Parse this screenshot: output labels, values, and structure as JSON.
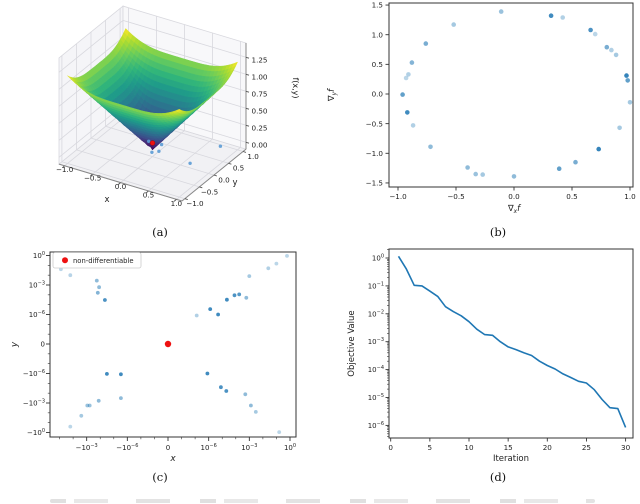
{
  "figure": {
    "captions": {
      "a": "(a)",
      "b": "(b)",
      "c": "(c)",
      "d": "(d)"
    }
  },
  "colors": {
    "blue": "#1f77b4",
    "light_blue": "#5b9bd5",
    "red": "#ee1111",
    "spine": "#333333",
    "text": "#222222",
    "pane": "#f1f1f4",
    "grid3d": "#d8d8de",
    "legend_border": "#cccccc"
  },
  "chart_data": [
    {
      "id": "a",
      "type": "surface3d",
      "xlabel": "x",
      "ylabel": "y",
      "zlabel": "f(x,y)",
      "surface_fn": "f(x,y)=(x^4+y^4)^(1/4)",
      "colormap": "viridis",
      "x_range": [
        -1,
        1
      ],
      "y_range": [
        -1,
        1
      ],
      "z_range": [
        0,
        1.19
      ],
      "xticks": [
        "−1.0",
        "−0.5",
        "0.0",
        "0.5",
        "1.0"
      ],
      "xtick_vals": [
        -1,
        -0.5,
        0,
        0.5,
        1
      ],
      "yticks": [
        "−1.0",
        "−0.5",
        "0.0",
        "0.5",
        "1.0"
      ],
      "ytick_vals": [
        -1,
        -0.5,
        0,
        0.5,
        1
      ],
      "zticks": [
        "0.00",
        "0.25",
        "0.50",
        "0.75",
        "1.00",
        "1.25"
      ],
      "ztick_vals": [
        0,
        0.25,
        0.5,
        0.75,
        1,
        1.25
      ],
      "scatter_blue": [
        [
          -0.12,
          0.1,
          0.06
        ],
        [
          0.1,
          0.12,
          0.06
        ],
        [
          0.14,
          -0.05,
          0.03
        ],
        [
          0.0,
          -0.02,
          -0.03
        ],
        [
          0.85,
          0.7,
          0.02
        ],
        [
          0.62,
          0.1,
          -0.08
        ]
      ],
      "scatter_red": [
        [
          0,
          0,
          0.1
        ]
      ]
    },
    {
      "id": "b",
      "type": "scatter",
      "xlabel": {
        "pre": "∇",
        "sub": "x",
        "post": "f"
      },
      "ylabel": {
        "pre": "∇",
        "sub": "y",
        "post": "f"
      },
      "xtick_vals": [
        -1,
        -0.5,
        0,
        0.5,
        1
      ],
      "xtick_labels": [
        "−1.0",
        "−0.5",
        "0.0",
        "0.5",
        "1.0"
      ],
      "ytick_vals": [
        1.5,
        1,
        0.5,
        0,
        -0.5,
        -1,
        -1.5
      ],
      "ytick_labels": [
        "1.5",
        "1.0",
        "0.5",
        "0.0",
        "−0.5",
        "−1.0",
        "−1.5"
      ],
      "points": [
        [
          -0.11,
          1.39,
          0.45
        ],
        [
          0.32,
          1.32,
          0.85
        ],
        [
          0.42,
          1.29,
          0.35
        ],
        [
          0.66,
          1.08,
          0.8
        ],
        [
          0.7,
          1.01,
          0.3
        ],
        [
          0.8,
          0.79,
          0.6
        ],
        [
          0.84,
          0.74,
          0.35
        ],
        [
          0.88,
          0.66,
          0.4
        ],
        [
          0.97,
          0.31,
          0.9
        ],
        [
          0.98,
          0.23,
          0.7
        ],
        [
          1.0,
          -0.14,
          0.4
        ],
        [
          0.91,
          -0.57,
          0.4
        ],
        [
          0.73,
          -0.93,
          0.9
        ],
        [
          0.53,
          -1.15,
          0.6
        ],
        [
          0.39,
          -1.26,
          0.7
        ],
        [
          0.0,
          -1.39,
          0.5
        ],
        [
          -0.27,
          -1.36,
          0.4
        ],
        [
          -0.33,
          -1.35,
          0.45
        ],
        [
          -0.4,
          -1.24,
          0.5
        ],
        [
          -0.72,
          -0.89,
          0.5
        ],
        [
          -0.87,
          -0.53,
          0.35
        ],
        [
          -0.92,
          -0.31,
          0.85
        ],
        [
          -0.96,
          -0.01,
          0.7
        ],
        [
          -0.93,
          0.27,
          0.3
        ],
        [
          -0.91,
          0.33,
          0.35
        ],
        [
          -0.88,
          0.53,
          0.55
        ],
        [
          -0.76,
          0.85,
          0.6
        ],
        [
          -0.52,
          1.17,
          0.4
        ]
      ]
    },
    {
      "id": "c",
      "type": "scatter_symlog",
      "xlabel": "x",
      "ylabel": "y",
      "legend_label": "non-differentiable",
      "xtick_labels": [
        {
          "t": "−10",
          "e": "−3"
        },
        {
          "t": "−10",
          "e": "−6"
        },
        {
          "t": "0"
        },
        {
          "t": "10",
          "e": "−6"
        },
        {
          "t": "10",
          "e": "−3"
        },
        {
          "t": "10",
          "e": "0"
        }
      ],
      "xtick_u": [
        -0.6667,
        -0.3333,
        0,
        0.3333,
        0.6667,
        1
      ],
      "ytick_labels": [
        {
          "t": "10",
          "e": "0"
        },
        {
          "t": "10",
          "e": "−3"
        },
        {
          "t": "10",
          "e": "−6"
        },
        {
          "t": "0"
        },
        {
          "t": "−10",
          "e": "−6"
        },
        {
          "t": "−10",
          "e": "−3"
        },
        {
          "t": "−10",
          "e": "0"
        }
      ],
      "ytick_u": [
        1,
        0.6667,
        0.3333,
        0,
        -0.3333,
        -0.6667,
        -1
      ],
      "red_point": [
        0,
        0
      ],
      "points": [
        [
          -0.08,
          0.04,
          0.3
        ],
        [
          -0.016,
          0.01,
          0.32
        ],
        [
          -0.00018,
          0.0028,
          0.5
        ],
        [
          -0.00012,
          0.0006,
          0.5
        ],
        [
          -0.00015,
          0.00016,
          0.55
        ],
        [
          -4.5e-05,
          3e-05,
          0.8
        ],
        [
          1.3e-07,
          8e-07,
          0.35
        ],
        [
          1.3e-06,
          3.5e-06,
          0.85
        ],
        [
          5e-06,
          1e-06,
          0.85
        ],
        [
          2.2e-05,
          3.2e-05,
          0.85
        ],
        [
          8e-05,
          9e-05,
          0.8
        ],
        [
          0.00018,
          0.00011,
          0.75
        ],
        [
          0.0006,
          5e-05,
          0.5
        ],
        [
          0.001,
          0.008,
          0.4
        ],
        [
          0.025,
          0.05,
          0.35
        ],
        [
          0.1,
          0.15,
          0.3
        ],
        [
          0.6,
          0.9,
          0.3
        ],
        [
          -3.2e-05,
          -1.1e-06,
          0.85
        ],
        [
          -3e-06,
          -1.2e-06,
          0.85
        ],
        [
          -3e-06,
          -0.00032,
          0.5
        ],
        [
          -0.00013,
          -0.0006,
          0.5
        ],
        [
          -0.0006,
          -0.0018,
          0.45
        ],
        [
          -0.0009,
          -0.0018,
          0.45
        ],
        [
          -0.0025,
          -0.02,
          0.4
        ],
        [
          -0.016,
          -0.25,
          0.3
        ],
        [
          8e-07,
          -1e-06,
          0.85
        ],
        [
          8e-06,
          -2.5e-05,
          0.8
        ],
        [
          2e-05,
          -6e-05,
          0.8
        ],
        [
          0.0005,
          -0.00013,
          0.5
        ],
        [
          0.0013,
          -0.0018,
          0.5
        ],
        [
          0.003,
          -0.008,
          0.4
        ],
        [
          0.16,
          -0.9,
          0.3
        ]
      ]
    },
    {
      "id": "d",
      "type": "line",
      "xlabel": "Iteration",
      "ylabel": "Objective Value",
      "xtick_vals": [
        0,
        5,
        10,
        15,
        20,
        25,
        30
      ],
      "xtick_labels": [
        "0",
        "5",
        "10",
        "15",
        "20",
        "25",
        "30"
      ],
      "ytick_exps": [
        0,
        -1,
        -2,
        -3,
        -4,
        -5,
        -6
      ],
      "ytick_labels": [
        {
          "t": "10",
          "e": "0"
        },
        {
          "t": "10",
          "e": "−1"
        },
        {
          "t": "10",
          "e": "−2"
        },
        {
          "t": "10",
          "e": "−3"
        },
        {
          "t": "10",
          "e": "−4"
        },
        {
          "t": "10",
          "e": "−5"
        },
        {
          "t": "10",
          "e": "−6"
        }
      ],
      "x": [
        1,
        2,
        3,
        4,
        5,
        6,
        7,
        8,
        9,
        10,
        11,
        12,
        13,
        14,
        15,
        16,
        17,
        18,
        19,
        20,
        21,
        22,
        23,
        24,
        25,
        26,
        27,
        28,
        29,
        30
      ],
      "values": [
        1.15,
        0.4,
        0.105,
        0.1,
        0.065,
        0.042,
        0.018,
        0.012,
        0.0085,
        0.0052,
        0.0028,
        0.0018,
        0.0017,
        0.001,
        0.00065,
        0.00052,
        0.0004,
        0.00032,
        0.0002,
        0.00014,
        0.000105,
        7e-05,
        5.2e-05,
        3.8e-05,
        3.3e-05,
        1.9e-05,
        8.5e-06,
        4.3e-06,
        4e-06,
        8.5e-07
      ]
    }
  ]
}
